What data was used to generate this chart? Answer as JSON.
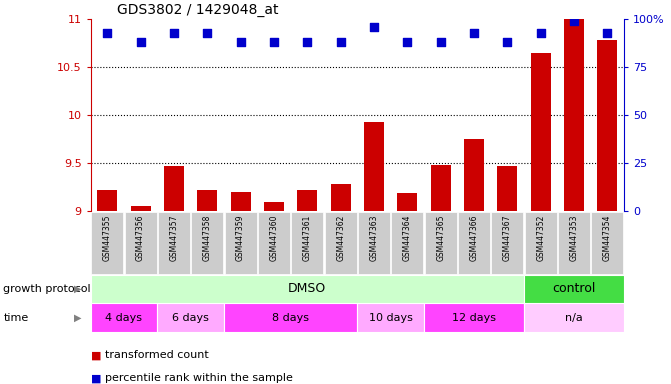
{
  "title": "GDS3802 / 1429048_at",
  "samples": [
    "GSM447355",
    "GSM447356",
    "GSM447357",
    "GSM447358",
    "GSM447359",
    "GSM447360",
    "GSM447361",
    "GSM447362",
    "GSM447363",
    "GSM447364",
    "GSM447365",
    "GSM447366",
    "GSM447367",
    "GSM447352",
    "GSM447353",
    "GSM447354"
  ],
  "bar_values": [
    9.22,
    9.05,
    9.47,
    9.22,
    9.2,
    9.1,
    9.22,
    9.28,
    9.93,
    9.19,
    9.48,
    9.75,
    9.47,
    10.65,
    11.0,
    10.78
  ],
  "dot_values": [
    93,
    88,
    93,
    93,
    88,
    88,
    88,
    88,
    96,
    88,
    88,
    93,
    88,
    93,
    99,
    93
  ],
  "bar_color": "#cc0000",
  "dot_color": "#0000cc",
  "ylim_left": [
    9.0,
    11.0
  ],
  "ylim_right": [
    0,
    100
  ],
  "yticks_left": [
    9.0,
    9.5,
    10.0,
    10.5,
    11.0
  ],
  "yticks_right": [
    0,
    25,
    50,
    75,
    100
  ],
  "grid_lines": [
    9.5,
    10.0,
    10.5
  ],
  "legend_bar_label": "transformed count",
  "legend_dot_label": "percentile rank within the sample",
  "xlabel_protocol": "growth protocol",
  "xlabel_time": "time",
  "bar_width": 0.6,
  "dot_size": 40,
  "dot_marker": "s",
  "bg_color": "#ffffff",
  "tick_label_color_left": "#cc0000",
  "tick_label_color_right": "#0000cc",
  "sample_bg_color": "#cccccc",
  "dmso_color": "#ccffcc",
  "control_color": "#44dd44",
  "time_color1": "#ff44ff",
  "time_color2": "#ffaaff",
  "time_na_color": "#ffccff",
  "label_fontsize": 7.5,
  "tick_fontsize": 8
}
